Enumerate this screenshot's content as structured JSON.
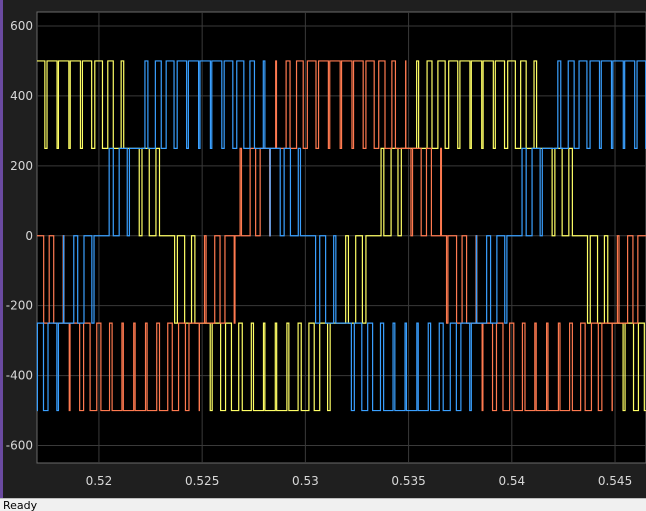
{
  "status": {
    "text": "Ready"
  },
  "chart_data": {
    "type": "line",
    "title": "",
    "xlabel": "",
    "ylabel": "",
    "xlim": [
      0.517,
      0.5465
    ],
    "ylim": [
      -650,
      640
    ],
    "grid": true,
    "background": "#000000",
    "grid_color": "#3a3a3a",
    "x_ticks": [
      {
        "value": 0.52,
        "label": "0.52"
      },
      {
        "value": 0.525,
        "label": "0.525"
      },
      {
        "value": 0.53,
        "label": "0.53"
      },
      {
        "value": 0.535,
        "label": "0.535"
      },
      {
        "value": 0.54,
        "label": "0.54"
      },
      {
        "value": 0.545,
        "label": "0.545"
      }
    ],
    "y_ticks": [
      {
        "value": 600,
        "label": "600"
      },
      {
        "value": 400,
        "label": "400"
      },
      {
        "value": 200,
        "label": "200"
      },
      {
        "value": 0,
        "label": "0"
      },
      {
        "value": -200,
        "label": "-200"
      },
      {
        "value": -400,
        "label": "-400"
      },
      {
        "value": -600,
        "label": "-600"
      }
    ],
    "fundamental_period": 0.02,
    "pwm_amplitude_step": 250,
    "series": [
      {
        "color": "#3aa0ff",
        "phase_deg": 0,
        "values": []
      },
      {
        "color": "#ff7a50",
        "phase_deg": -120,
        "values": []
      },
      {
        "color": "#ffff66",
        "phase_deg": 120,
        "values": []
      }
    ]
  }
}
